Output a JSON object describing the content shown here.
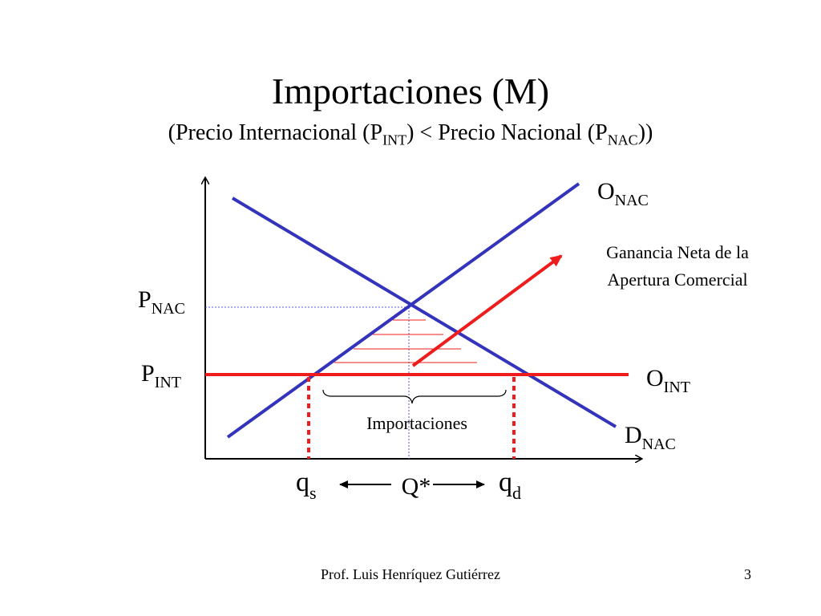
{
  "title": "Importaciones (M)",
  "subtitle": {
    "open": "(Precio Internacional (P",
    "pint_sub": "INT",
    "middle": ") < Precio Nacional (P",
    "pnac_sub": "NAC",
    "close": "))"
  },
  "labels": {
    "o_nac": {
      "base": "O",
      "sub": "NAC"
    },
    "o_int": {
      "base": "O",
      "sub": "INT"
    },
    "d_nac": {
      "base": "D",
      "sub": "NAC"
    },
    "p_nac": {
      "base": "P",
      "sub": "NAC"
    },
    "p_int": {
      "base": "P",
      "sub": "INT"
    },
    "q_s": {
      "base": "q",
      "sub": "s"
    },
    "q_d": {
      "base": "q",
      "sub": "d"
    },
    "q_star": "Q*",
    "importaciones": "Importaciones",
    "ganancia_line1": "Ganancia Neta de la",
    "ganancia_line2": "Apertura Comercial"
  },
  "colors": {
    "curve_blue": "#3333bb",
    "line_red": "#ee1c1c",
    "guide_blue": "#5555dd"
  },
  "footer": {
    "author": "Prof. Luis Henríquez Gutiérrez",
    "page": "3"
  }
}
